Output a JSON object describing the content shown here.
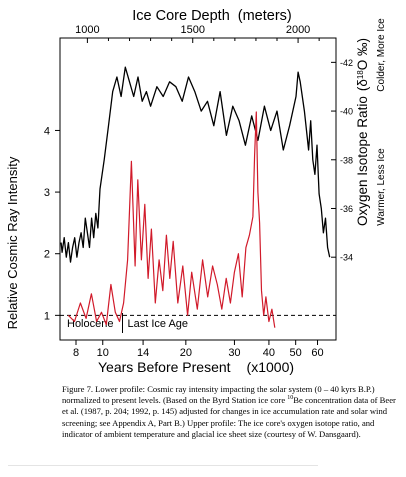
{
  "chart_data": {
    "type": "line",
    "title": "",
    "top_axis": {
      "label": "Ice Core Depth",
      "unit": "(meters)",
      "range": [
        870,
        2180
      ],
      "ticks": [
        1000,
        1500,
        2000
      ]
    },
    "x_axis": {
      "label": "Years Before Present",
      "unit": "(x1000)",
      "scale": "log",
      "range": [
        7,
        70
      ],
      "tick_values": [
        8,
        10,
        14,
        20,
        30,
        40,
        50,
        60
      ]
    },
    "left_axis": {
      "label": "Relative Cosmic Ray Intensity",
      "range": [
        0.6,
        5.5
      ],
      "ticks": [
        1,
        2,
        3,
        4
      ]
    },
    "right_axis": {
      "label": "Oxygen Isotope Ratio",
      "symbol": "(δ",
      "symbol_sup": "18",
      "symbol_tail": "O ‰)",
      "label_colder": "Colder, More Ice",
      "label_warmer": "Warmer, Less Ice",
      "range": [
        -30.6,
        -43
      ],
      "tick_values": [
        -34,
        -36,
        -38,
        -40,
        -42
      ],
      "tick_labels": [
        "-34",
        "-36",
        "-38",
        "-40",
        "-42"
      ]
    },
    "reference_line": 1.0,
    "periods": [
      {
        "label": "Holocene",
        "until_kyr": 11.5
      },
      {
        "label": "Last Ice Age",
        "from_kyr": 11.5
      }
    ],
    "series": [
      {
        "color": "#000000",
        "axis": "top-right",
        "x_depth": [
          875,
          880,
          890,
          900,
          910,
          920,
          930,
          940,
          950,
          960,
          970,
          980,
          990,
          1000,
          1010,
          1020,
          1030,
          1040,
          1050,
          1060,
          1080,
          1100,
          1120,
          1140,
          1160,
          1180,
          1200,
          1220,
          1240,
          1260,
          1280,
          1300,
          1330,
          1360,
          1390,
          1420,
          1450,
          1480,
          1510,
          1540,
          1570,
          1600,
          1630,
          1660,
          1690,
          1720,
          1750,
          1780,
          1810,
          1840,
          1870,
          1900,
          1930,
          1960,
          1990,
          2000,
          2010,
          2020,
          2030,
          2040,
          2050,
          2060,
          2070,
          2080,
          2090,
          2100,
          2110,
          2120,
          2130,
          2140,
          2150
        ],
        "y_delta18O": [
          -34.6,
          -34.2,
          -34.8,
          -34.0,
          -34.6,
          -33.8,
          -34.4,
          -34.8,
          -34.0,
          -34.6,
          -35.0,
          -34.4,
          -35.6,
          -35.0,
          -34.4,
          -35.6,
          -34.8,
          -35.8,
          -35.2,
          -36.8,
          -38.0,
          -39.4,
          -40.8,
          -41.4,
          -40.6,
          -41.8,
          -41.2,
          -40.6,
          -41.4,
          -40.4,
          -40.8,
          -40.2,
          -41.0,
          -40.6,
          -41.2,
          -41.0,
          -40.4,
          -41.4,
          -40.8,
          -40.0,
          -40.4,
          -39.4,
          -40.8,
          -39.0,
          -40.2,
          -39.6,
          -38.6,
          -39.8,
          -38.8,
          -40.2,
          -39.2,
          -40.0,
          -38.4,
          -39.4,
          -40.6,
          -41.6,
          -41.2,
          -40.6,
          -40.0,
          -39.2,
          -38.4,
          -39.6,
          -38.0,
          -37.4,
          -38.6,
          -36.6,
          -36.0,
          -35.0,
          -35.6,
          -34.4,
          -34.0
        ]
      },
      {
        "color": "#d11a2a",
        "axis": "bottom-left",
        "x_kyr": [
          7.5,
          7.9,
          8.3,
          8.7,
          9.1,
          9.5,
          9.9,
          10.3,
          10.7,
          11.1,
          11.5,
          11.9,
          12.3,
          12.7,
          13.1,
          13.4,
          13.8,
          14.2,
          14.6,
          15.0,
          15.5,
          16.0,
          16.5,
          17.0,
          17.5,
          18.0,
          18.7,
          19.5,
          20.3,
          21.0,
          22.0,
          23.0,
          24.0,
          25.0,
          26.0,
          27.0,
          28.0,
          29.0,
          30.0,
          31.0,
          32.0,
          33.0,
          34.0,
          35.0,
          35.5,
          36.0,
          36.5,
          37.0,
          37.6,
          38.3,
          39.0,
          40.0,
          41.0,
          42.0
        ],
        "y_intensity": [
          1.0,
          0.9,
          1.2,
          0.95,
          1.35,
          0.9,
          1.05,
          0.85,
          1.5,
          1.05,
          0.9,
          1.2,
          1.9,
          3.5,
          1.8,
          3.2,
          1.9,
          2.8,
          1.6,
          2.4,
          1.2,
          1.9,
          1.4,
          2.3,
          1.6,
          2.2,
          1.2,
          1.8,
          1.0,
          1.7,
          1.1,
          1.9,
          1.3,
          1.8,
          1.5,
          1.1,
          1.6,
          1.2,
          1.7,
          2.0,
          1.3,
          2.1,
          2.3,
          2.6,
          3.6,
          4.3,
          3.0,
          2.5,
          1.4,
          1.0,
          1.3,
          0.9,
          1.1,
          0.8
        ]
      }
    ]
  },
  "caption": {
    "figure_label": "Figure 7.",
    "text_before_sup": " Lower profile: Cosmic ray intensity impacting the solar system (0 – 40 kyrs B.P.) normalized to present levels.  (Based on the Byrd Station ice core ",
    "sup": "10",
    "text_after_sup": "Be concentration data of Beer et al. (1987, p. 204; 1992, p. 145) adjusted for changes in ice accumulation rate and solar wind screening; see Appendix A, Part B.)  Upper profile: The ice core's oxygen isotope ratio, and indicator of ambient temperature and glacial ice sheet size (courtesy of W. Dansgaard)."
  }
}
